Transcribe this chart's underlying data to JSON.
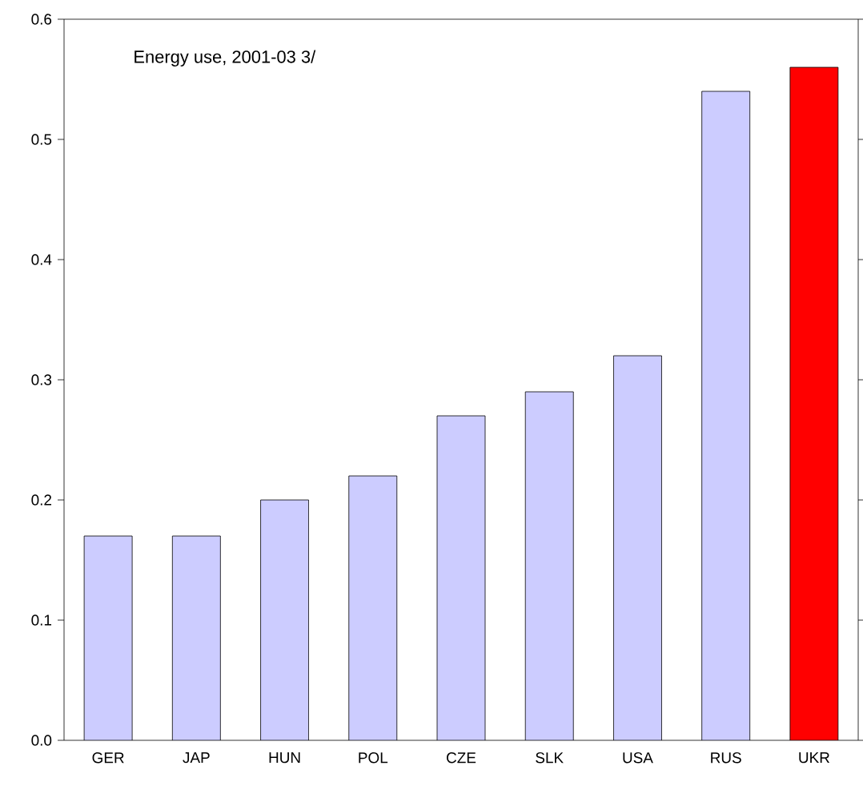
{
  "chart_data": {
    "type": "bar",
    "title": "Energy use, 2001-03 3/",
    "categories": [
      "GER",
      "JAP",
      "HUN",
      "POL",
      "CZE",
      "SLK",
      "USA",
      "RUS",
      "UKR"
    ],
    "values": [
      0.17,
      0.17,
      0.2,
      0.22,
      0.27,
      0.29,
      0.32,
      0.54,
      0.56
    ],
    "colors": [
      "#ccccff",
      "#ccccff",
      "#ccccff",
      "#ccccff",
      "#ccccff",
      "#ccccff",
      "#ccccff",
      "#ccccff",
      "#ff0000"
    ],
    "ylim": [
      0,
      0.6
    ],
    "yticks": [
      {
        "value": 0,
        "label": "0.0"
      },
      0.1,
      0.2,
      0.3,
      0.4,
      0.5,
      0.6
    ],
    "grid": false
  }
}
